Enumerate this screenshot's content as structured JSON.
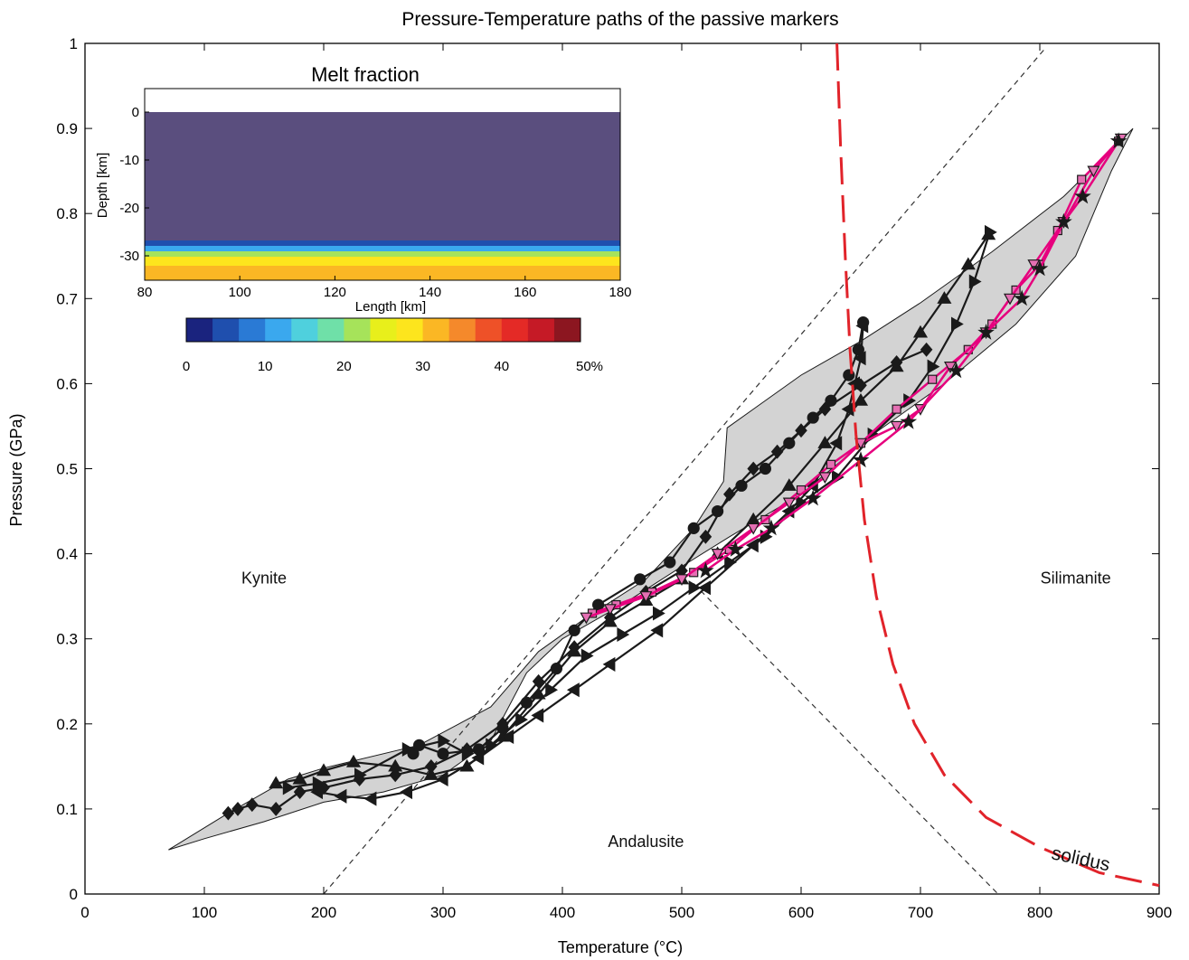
{
  "chart_data": {
    "type": "line",
    "title": "Pressure-Temperature paths of the passive markers",
    "xlabel": "Temperature (°C)",
    "ylabel": "Pressure (GPa)",
    "xlim": [
      0,
      900
    ],
    "ylim": [
      0,
      1
    ],
    "xticks": [
      "0",
      "100",
      "200",
      "300",
      "400",
      "500",
      "600",
      "700",
      "800",
      "900"
    ],
    "yticks": [
      "0",
      "0.1",
      "0.2",
      "0.3",
      "0.4",
      "0.5",
      "0.6",
      "0.7",
      "0.8",
      "0.9",
      "1"
    ],
    "x_tick_values": [
      0,
      100,
      200,
      300,
      400,
      500,
      600,
      700,
      800,
      900
    ],
    "y_tick_values": [
      0,
      0.1,
      0.2,
      0.3,
      0.4,
      0.5,
      0.6,
      0.7,
      0.8,
      0.9,
      1
    ],
    "grid": false,
    "region_labels": [
      {
        "text": "Kynite",
        "x": 150,
        "y": 0.365
      },
      {
        "text": "Silimanite",
        "x": 830,
        "y": 0.365
      },
      {
        "text": "Andalusite",
        "x": 470,
        "y": 0.055
      }
    ],
    "envelope": [
      [
        70,
        0.052
      ],
      [
        120,
        0.095
      ],
      [
        170,
        0.135
      ],
      [
        200,
        0.148
      ],
      [
        280,
        0.175
      ],
      [
        340,
        0.22
      ],
      [
        380,
        0.285
      ],
      [
        420,
        0.325
      ],
      [
        470,
        0.37
      ],
      [
        510,
        0.43
      ],
      [
        535,
        0.485
      ],
      [
        538,
        0.548
      ],
      [
        560,
        0.57
      ],
      [
        600,
        0.61
      ],
      [
        650,
        0.65
      ],
      [
        700,
        0.695
      ],
      [
        760,
        0.755
      ],
      [
        820,
        0.82
      ],
      [
        878,
        0.9
      ],
      [
        860,
        0.85
      ],
      [
        830,
        0.75
      ],
      [
        780,
        0.67
      ],
      [
        720,
        0.6
      ],
      [
        660,
        0.54
      ],
      [
        600,
        0.47
      ],
      [
        540,
        0.42
      ],
      [
        500,
        0.385
      ],
      [
        450,
        0.34
      ],
      [
        400,
        0.3
      ],
      [
        370,
        0.26
      ],
      [
        340,
        0.18
      ],
      [
        300,
        0.14
      ],
      [
        250,
        0.12
      ],
      [
        200,
        0.108
      ],
      [
        150,
        0.085
      ],
      [
        100,
        0.065
      ]
    ],
    "series": [
      {
        "color": "#1a1a1a",
        "marker": "diamond",
        "points": [
          [
            120,
            0.095
          ],
          [
            128,
            0.1
          ],
          [
            140,
            0.105
          ],
          [
            160,
            0.1
          ],
          [
            180,
            0.12
          ],
          [
            200,
            0.125
          ],
          [
            230,
            0.135
          ],
          [
            260,
            0.14
          ],
          [
            290,
            0.15
          ],
          [
            320,
            0.17
          ],
          [
            350,
            0.2
          ],
          [
            380,
            0.25
          ],
          [
            410,
            0.29
          ],
          [
            440,
            0.325
          ],
          [
            470,
            0.355
          ],
          [
            500,
            0.38
          ],
          [
            520,
            0.42
          ],
          [
            540,
            0.47
          ],
          [
            560,
            0.5
          ],
          [
            580,
            0.52
          ],
          [
            600,
            0.545
          ],
          [
            620,
            0.57
          ],
          [
            650,
            0.598
          ],
          [
            680,
            0.625
          ],
          [
            705,
            0.64
          ]
        ]
      },
      {
        "color": "#1a1a1a",
        "marker": "triangle-up",
        "points": [
          [
            160,
            0.13
          ],
          [
            180,
            0.135
          ],
          [
            200,
            0.145
          ],
          [
            225,
            0.155
          ],
          [
            260,
            0.15
          ],
          [
            290,
            0.14
          ],
          [
            320,
            0.15
          ],
          [
            350,
            0.185
          ],
          [
            380,
            0.235
          ],
          [
            410,
            0.285
          ],
          [
            440,
            0.32
          ],
          [
            470,
            0.345
          ],
          [
            500,
            0.37
          ],
          [
            530,
            0.4
          ],
          [
            560,
            0.44
          ],
          [
            590,
            0.48
          ],
          [
            620,
            0.53
          ],
          [
            650,
            0.58
          ],
          [
            680,
            0.62
          ],
          [
            700,
            0.66
          ],
          [
            720,
            0.7
          ],
          [
            740,
            0.74
          ],
          [
            757,
            0.775
          ]
        ]
      },
      {
        "color": "#1a1a1a",
        "marker": "circle",
        "points": [
          [
            275,
            0.165
          ],
          [
            280,
            0.175
          ],
          [
            300,
            0.165
          ],
          [
            330,
            0.17
          ],
          [
            350,
            0.195
          ],
          [
            370,
            0.225
          ],
          [
            395,
            0.265
          ],
          [
            410,
            0.31
          ],
          [
            430,
            0.34
          ],
          [
            465,
            0.37
          ],
          [
            490,
            0.39
          ],
          [
            510,
            0.43
          ],
          [
            530,
            0.45
          ],
          [
            550,
            0.48
          ],
          [
            570,
            0.5
          ],
          [
            590,
            0.53
          ],
          [
            610,
            0.56
          ],
          [
            625,
            0.58
          ],
          [
            640,
            0.61
          ],
          [
            648,
            0.64
          ],
          [
            652,
            0.672
          ]
        ]
      },
      {
        "color": "#1a1a1a",
        "marker": "triangle-right",
        "points": [
          [
            170,
            0.125
          ],
          [
            195,
            0.13
          ],
          [
            230,
            0.14
          ],
          [
            270,
            0.17
          ],
          [
            300,
            0.18
          ],
          [
            320,
            0.165
          ],
          [
            340,
            0.175
          ],
          [
            365,
            0.205
          ],
          [
            390,
            0.24
          ],
          [
            420,
            0.28
          ],
          [
            450,
            0.305
          ],
          [
            480,
            0.33
          ],
          [
            510,
            0.36
          ],
          [
            540,
            0.39
          ],
          [
            570,
            0.42
          ],
          [
            600,
            0.46
          ],
          [
            630,
            0.49
          ],
          [
            660,
            0.54
          ],
          [
            690,
            0.58
          ],
          [
            710,
            0.62
          ],
          [
            730,
            0.67
          ],
          [
            745,
            0.72
          ],
          [
            758,
            0.778
          ]
        ]
      },
      {
        "color": "#1a1a1a",
        "marker": "triangle-left",
        "points": [
          [
            195,
            0.12
          ],
          [
            215,
            0.115
          ],
          [
            240,
            0.112
          ],
          [
            270,
            0.12
          ],
          [
            300,
            0.135
          ],
          [
            330,
            0.16
          ],
          [
            355,
            0.185
          ],
          [
            380,
            0.21
          ],
          [
            410,
            0.24
          ],
          [
            440,
            0.27
          ],
          [
            480,
            0.31
          ],
          [
            520,
            0.36
          ],
          [
            560,
            0.41
          ],
          [
            590,
            0.45
          ],
          [
            610,
            0.48
          ],
          [
            630,
            0.53
          ],
          [
            640,
            0.57
          ],
          [
            645,
            0.6
          ],
          [
            650,
            0.63
          ],
          [
            652,
            0.668
          ]
        ]
      },
      {
        "color": "#e6007e",
        "marker": "square",
        "points": [
          [
            425,
            0.33
          ],
          [
            445,
            0.34
          ],
          [
            475,
            0.355
          ],
          [
            510,
            0.378
          ],
          [
            540,
            0.405
          ],
          [
            570,
            0.44
          ],
          [
            600,
            0.475
          ],
          [
            625,
            0.505
          ],
          [
            650,
            0.53
          ],
          [
            680,
            0.57
          ],
          [
            710,
            0.605
          ],
          [
            740,
            0.64
          ],
          [
            760,
            0.67
          ],
          [
            780,
            0.71
          ],
          [
            800,
            0.74
          ],
          [
            815,
            0.78
          ],
          [
            835,
            0.84
          ],
          [
            866,
            0.885
          ]
        ]
      },
      {
        "color": "#e6007e",
        "marker": "triangle-down",
        "points": [
          [
            420,
            0.325
          ],
          [
            440,
            0.335
          ],
          [
            470,
            0.35
          ],
          [
            500,
            0.37
          ],
          [
            530,
            0.4
          ],
          [
            560,
            0.43
          ],
          [
            590,
            0.46
          ],
          [
            620,
            0.49
          ],
          [
            650,
            0.53
          ],
          [
            680,
            0.55
          ],
          [
            700,
            0.57
          ],
          [
            725,
            0.62
          ],
          [
            755,
            0.66
          ],
          [
            775,
            0.7
          ],
          [
            795,
            0.74
          ],
          [
            820,
            0.79
          ],
          [
            845,
            0.85
          ],
          [
            868,
            0.888
          ]
        ]
      },
      {
        "color": "#e6007e",
        "marker": "star",
        "points": [
          [
            520,
            0.38
          ],
          [
            545,
            0.405
          ],
          [
            575,
            0.43
          ],
          [
            610,
            0.465
          ],
          [
            650,
            0.51
          ],
          [
            690,
            0.555
          ],
          [
            730,
            0.615
          ],
          [
            755,
            0.66
          ],
          [
            785,
            0.7
          ],
          [
            800,
            0.735
          ],
          [
            820,
            0.79
          ],
          [
            836,
            0.82
          ],
          [
            866,
            0.885
          ]
        ]
      }
    ],
    "reaction_lines": [
      {
        "style": "dashed",
        "color": "#333333",
        "points": [
          [
            200,
            0
          ],
          [
            805,
            0.995
          ]
        ]
      },
      {
        "style": "dashed",
        "color": "#333333",
        "points": [
          [
            510,
            0.365
          ],
          [
            765,
            0
          ]
        ]
      }
    ],
    "solidus": {
      "label": "solidus",
      "color": "#e1232a",
      "points": [
        [
          630,
          1.0
        ],
        [
          633,
          0.88
        ],
        [
          637,
          0.75
        ],
        [
          641,
          0.64
        ],
        [
          646,
          0.54
        ],
        [
          653,
          0.44
        ],
        [
          663,
          0.35
        ],
        [
          677,
          0.27
        ],
        [
          695,
          0.2
        ],
        [
          720,
          0.14
        ],
        [
          755,
          0.09
        ],
        [
          800,
          0.055
        ],
        [
          850,
          0.025
        ],
        [
          900,
          0.01
        ]
      ]
    },
    "inset": {
      "title": "Melt fraction",
      "xlabel": "Length [km]",
      "ylabel": "Depth [km]",
      "xticks": [
        "80",
        "100",
        "120",
        "140",
        "160",
        "180"
      ],
      "yticks": [
        "0",
        "-10",
        "-20",
        "-30"
      ],
      "colorbar_ticks": [
        "0",
        "10",
        "20",
        "30",
        "40",
        "50%"
      ],
      "colorbar_colors": [
        "#1a237e",
        "#1f4fae",
        "#2a7ad5",
        "#3aa8ee",
        "#4fd0dd",
        "#6fe0a8",
        "#a6e35a",
        "#e8ef1b",
        "#fde51d",
        "#fbb724",
        "#f5892b",
        "#ee5128",
        "#e42a26",
        "#c51a26",
        "#8c1620"
      ],
      "layer_colors": [
        "#5a4e7e",
        "#1f4fae",
        "#3aa8ee",
        "#a6e35a",
        "#fde51d",
        "#fbb724"
      ]
    }
  }
}
